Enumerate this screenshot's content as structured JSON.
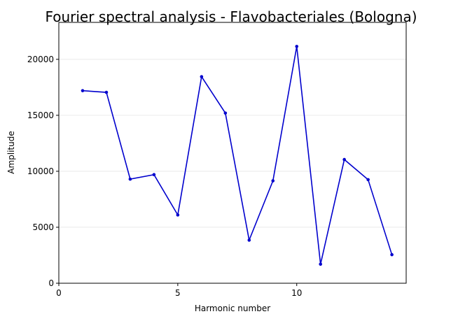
{
  "chart_data": {
    "type": "line",
    "title": "Fourier spectral analysis - Flavobacteriales (Bologna)",
    "xlabel": "Harmonic number",
    "ylabel": "Amplitude",
    "xlim": [
      0,
      14.6
    ],
    "ylim": [
      0,
      23300
    ],
    "xticks": [
      0,
      5,
      10
    ],
    "yticks": [
      0,
      5000,
      10000,
      15000,
      20000
    ],
    "grid": "horizontal",
    "line_color": "#0000cd",
    "series": [
      {
        "x": [
          1,
          2,
          3,
          4,
          5,
          6,
          7,
          8,
          9,
          10,
          11,
          12,
          13,
          14
        ],
        "values": [
          17200,
          17050,
          9300,
          9700,
          6100,
          18450,
          15200,
          3850,
          9150,
          21150,
          1700,
          11050,
          9250,
          2550
        ]
      }
    ]
  }
}
